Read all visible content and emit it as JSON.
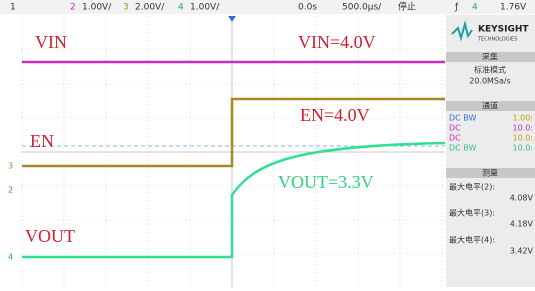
{
  "top_bar": {
    "ch1": "1",
    "ch2": "2",
    "ch2_scale": "1.00V/",
    "ch3": "3",
    "ch3_scale": "2.00V/",
    "ch4": "4",
    "ch4_scale": "1.00V/",
    "delay": "0.0s",
    "timebase": "500.0µs/",
    "status": "停止",
    "trigger_icon": "ƒ",
    "trigger_source": "4",
    "trigger_level": "1.76V"
  },
  "markers": {
    "ch3": "3",
    "ch2": "2",
    "ch4": "4"
  },
  "annotations": {
    "vin": "VIN",
    "vin_value": "VIN=4.0V",
    "en_value": "EN=4.0V",
    "en": "EN",
    "vout_value": "VOUT=3.3V",
    "vout": "VOUT"
  },
  "side_panel": {
    "brand": "KEYSIGHT",
    "brand_sub": "TECHNOLOGIES",
    "acquire": {
      "title": "采集",
      "mode": "标准模式",
      "rate": "20.0MSa/s"
    },
    "channels": {
      "title": "通道",
      "rows": [
        [
          "DC BW",
          "1.00:"
        ],
        [
          "DC",
          "10.0:"
        ],
        [
          "DC",
          "10.0:"
        ],
        [
          "DC BW",
          "10.0:"
        ]
      ]
    },
    "measure": {
      "title": "测量",
      "items": [
        [
          "最大电平(2):",
          "4.08V"
        ],
        [
          "最大电平(3):",
          "4.18V"
        ],
        [
          "最大电平(4):",
          "3.42V"
        ]
      ]
    }
  }
}
